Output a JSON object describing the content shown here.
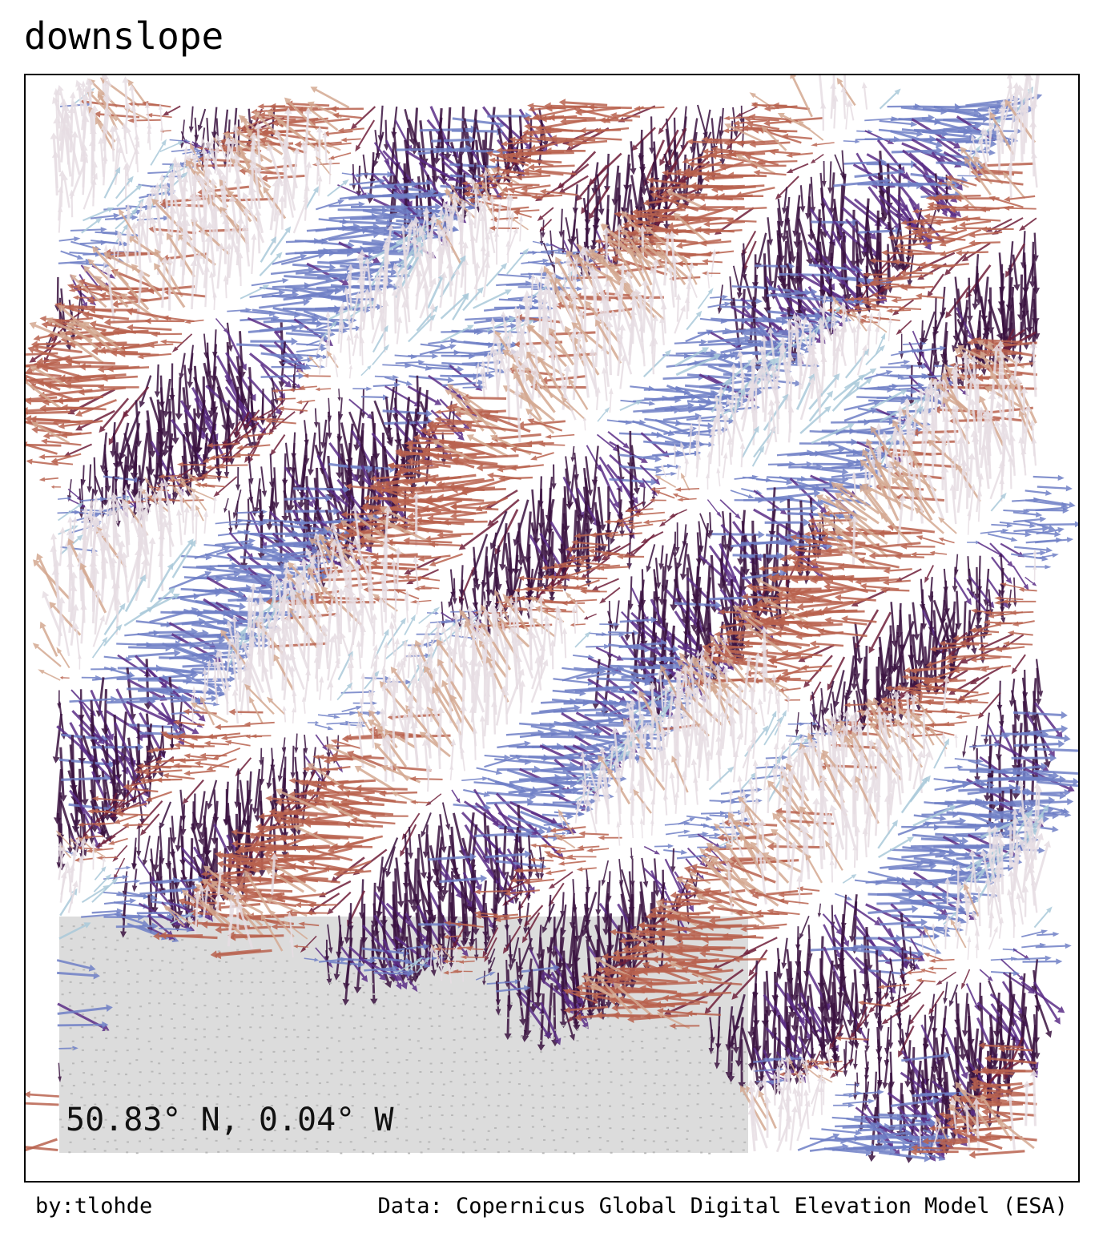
{
  "title": "downslope",
  "location_label": "50.83° N, 0.04° W",
  "credit_author": "by:tlohde",
  "credit_source": "Data: Copernicus Global Digital Elevation Model (ESA)",
  "palette": {
    "north": "#e6dde3",
    "east": "#6f7fc6",
    "south": "#3a1240",
    "west": "#b8624e",
    "north_east": "#a9c9d9",
    "south_east": "#5a2d86",
    "south_west": "#6e1f3a",
    "north_west": "#d4a890",
    "flat": "#c8c8c8"
  },
  "colour_encoding": "arrow colour by downslope direction (cyclic)"
}
